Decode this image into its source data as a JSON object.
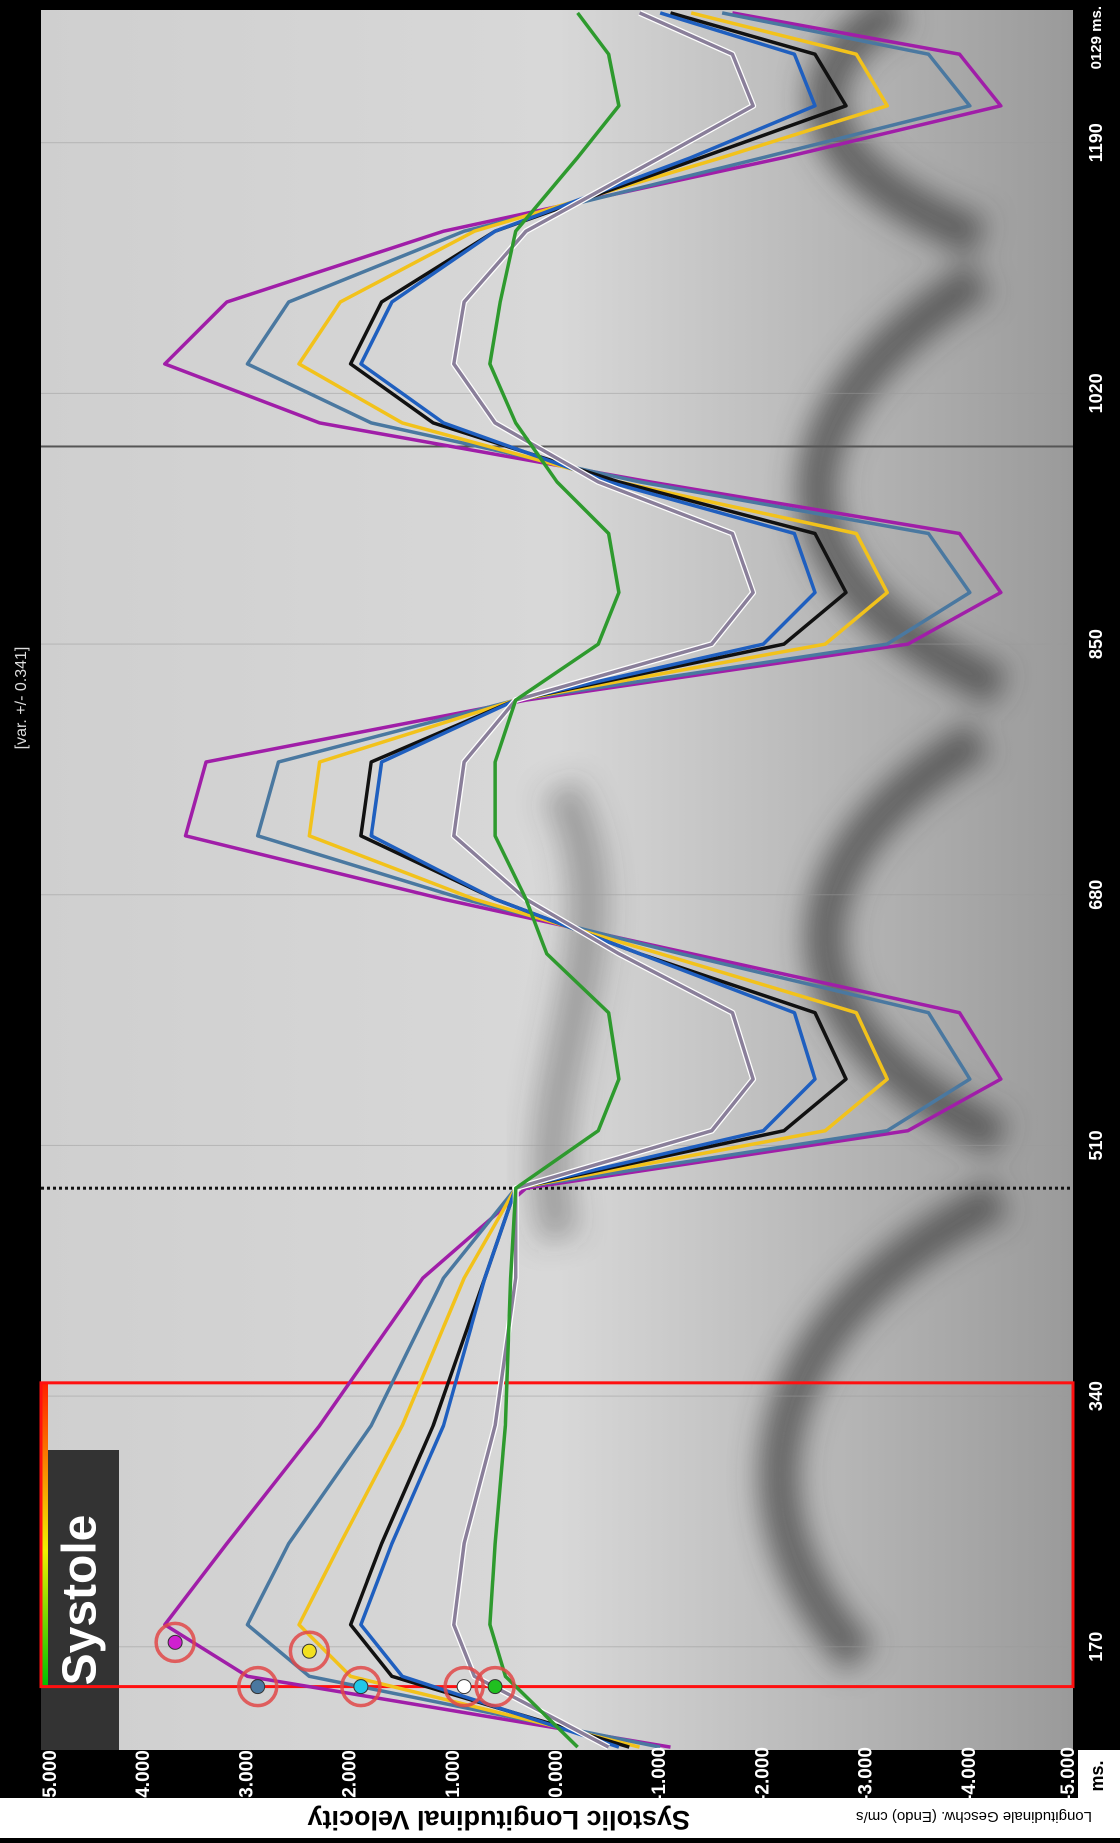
{
  "chart_data": {
    "type": "line",
    "y_label": "Systolic Longitudinal Velocity",
    "y_sublabel": "Longitudinale Geschw. (Endo)  cm/s",
    "x_unit": "ms.",
    "variance": "[var. +/- 0.341]",
    "time": "0129 ms.",
    "systole": {
      "label": "Systole",
      "x": [
        143,
        349
      ]
    },
    "dotted_x": 481,
    "cursor_x": 984,
    "grid": true,
    "xlim": [
      100,
      1280
    ],
    "ylim": [
      -5,
      5
    ],
    "xticks": [
      170,
      340,
      510,
      680,
      850,
      1020,
      1190
    ],
    "yticks": [
      {
        "value": 5,
        "label": "5.000"
      },
      {
        "value": 4,
        "label": "4.000"
      },
      {
        "value": 3,
        "label": "3.000"
      },
      {
        "value": 2,
        "label": "2.000"
      },
      {
        "value": 1,
        "label": "1.000"
      },
      {
        "value": 0,
        "label": "0.000"
      },
      {
        "value": -1,
        "label": "-1.000"
      },
      {
        "value": -2,
        "label": "-2.000"
      },
      {
        "value": -3,
        "label": "-3.000"
      },
      {
        "value": -4,
        "label": "-4.000"
      },
      {
        "value": -5,
        "label": "-5.000"
      }
    ],
    "x": [
      102,
      150,
      185,
      240,
      320,
      420,
      481,
      520,
      555,
      600,
      640,
      677,
      720,
      770,
      812,
      850,
      885,
      925,
      960,
      1000,
      1040,
      1082,
      1130,
      1180,
      1215,
      1250,
      1278
    ],
    "series": [
      {
        "color": "#a01ea8",
        "values": [
          -1.1,
          3.0,
          3.8,
          3.2,
          2.3,
          1.3,
          0.3,
          -3.4,
          -4.3,
          -3.9,
          -1.3,
          1.1,
          3.6,
          3.4,
          0.3,
          -3.4,
          -4.3,
          -3.9,
          -0.9,
          2.3,
          3.8,
          3.2,
          1.1,
          -2.2,
          -4.3,
          -3.9,
          -1.7
        ]
      },
      {
        "color": "#4a78a0",
        "values": [
          -1.0,
          2.4,
          3.0,
          2.6,
          1.8,
          1.1,
          0.4,
          -3.2,
          -4.0,
          -3.6,
          -1.2,
          0.9,
          2.9,
          2.7,
          0.4,
          -3.2,
          -4.0,
          -3.6,
          -0.8,
          1.8,
          3.0,
          2.6,
          0.9,
          -2.0,
          -4.0,
          -3.6,
          -1.6
        ]
      },
      {
        "color": "#f2c21b",
        "values": [
          -0.8,
          2.0,
          2.5,
          2.1,
          1.5,
          0.9,
          0.4,
          -2.6,
          -3.2,
          -2.9,
          -1.0,
          0.8,
          2.4,
          2.3,
          0.4,
          -2.6,
          -3.2,
          -2.9,
          -0.6,
          1.5,
          2.5,
          2.1,
          0.8,
          -1.6,
          -3.2,
          -2.9,
          -1.3
        ]
      },
      {
        "color": "#111111",
        "values": [
          -0.7,
          1.6,
          2.0,
          1.7,
          1.2,
          0.7,
          0.4,
          -2.2,
          -2.8,
          -2.5,
          -0.8,
          0.6,
          1.9,
          1.8,
          0.4,
          -2.2,
          -2.8,
          -2.5,
          -0.6,
          1.2,
          2.0,
          1.7,
          0.6,
          -1.4,
          -2.8,
          -2.5,
          -1.1
        ]
      },
      {
        "color": "#1f5fbf",
        "values": [
          -0.6,
          1.5,
          1.9,
          1.6,
          1.1,
          0.7,
          0.4,
          -2.0,
          -2.5,
          -2.3,
          -0.8,
          0.6,
          1.8,
          1.7,
          0.4,
          -2.0,
          -2.5,
          -2.3,
          -0.5,
          1.1,
          1.9,
          1.6,
          0.6,
          -1.3,
          -2.5,
          -2.3,
          -1.0
        ]
      },
      {
        "color": "#8a7f9a",
        "values": [
          -0.5,
          0.8,
          1.0,
          0.9,
          0.6,
          0.4,
          0.4,
          -1.5,
          -1.9,
          -1.7,
          -0.6,
          0.3,
          1.0,
          0.9,
          0.4,
          -1.5,
          -1.9,
          -1.7,
          -0.4,
          0.6,
          1.0,
          0.9,
          0.3,
          -1.0,
          -1.9,
          -1.7,
          -0.8
        ]
      },
      {
        "color": "#2e9a2e",
        "values": [
          -0.2,
          0.5,
          0.65,
          0.6,
          0.5,
          0.45,
          0.4,
          -0.4,
          -0.6,
          -0.5,
          0.1,
          0.3,
          0.6,
          0.6,
          0.4,
          -0.4,
          -0.6,
          -0.5,
          0.0,
          0.4,
          0.65,
          0.55,
          0.4,
          -0.2,
          -0.6,
          -0.5,
          -0.2
        ]
      }
    ],
    "markers": [
      {
        "x": 173,
        "y": 3.7,
        "color": "#d020d0"
      },
      {
        "x": 143,
        "y": 2.9,
        "color": "#4a78a0"
      },
      {
        "x": 167,
        "y": 2.4,
        "color": "#f2e020"
      },
      {
        "x": 143,
        "y": 1.9,
        "color": "#20c8e8"
      },
      {
        "x": 143,
        "y": 0.9,
        "color": "#ffffff"
      },
      {
        "x": 143,
        "y": 0.6,
        "color": "#20c020"
      }
    ]
  }
}
